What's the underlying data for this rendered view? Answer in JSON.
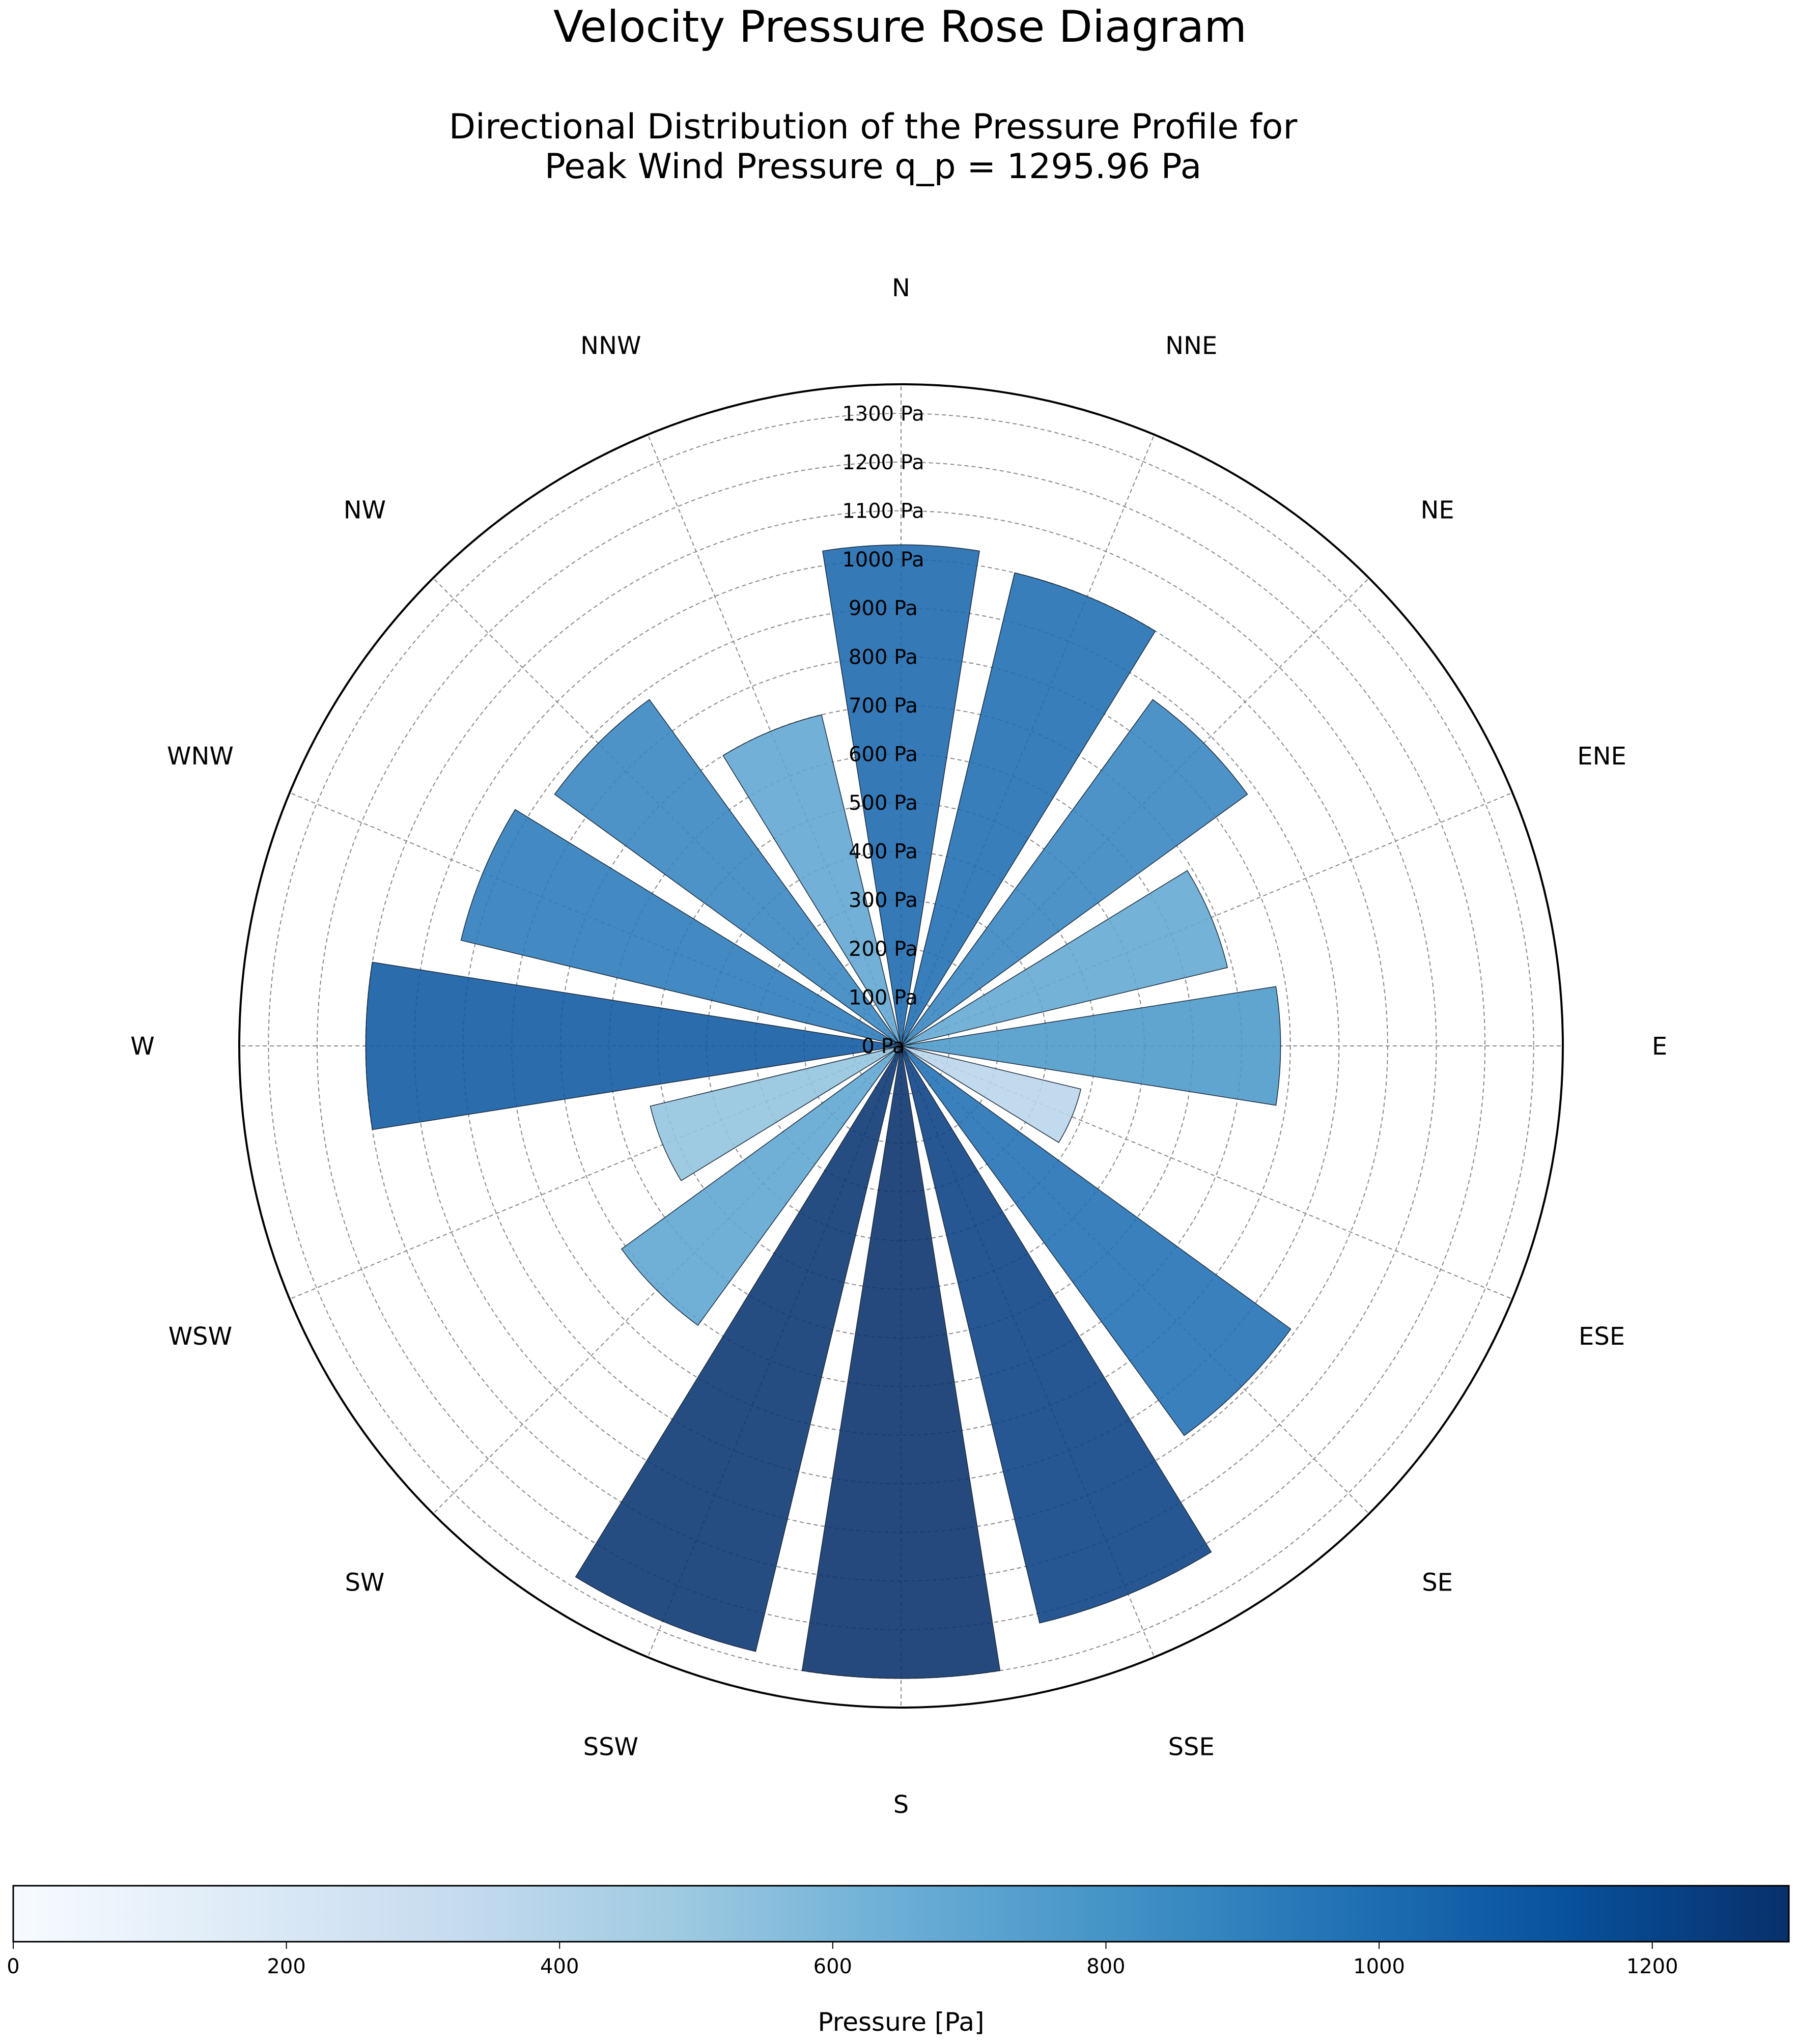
{
  "chart_data": {
    "type": "bar",
    "polar": true,
    "title": "Velocity Pressure Rose Diagram",
    "subtitle_lines": [
      "Directional Distribution of the Pressure Profile for",
      "Peak Wind Pressure q_p = 1295.96 Pa"
    ],
    "categories": [
      "N",
      "NNE",
      "NE",
      "ENE",
      "E",
      "ESE",
      "SE",
      "SSE",
      "S",
      "SSW",
      "SW",
      "WSW",
      "W",
      "WNW",
      "NW",
      "NNW"
    ],
    "values": [
      1030,
      1000,
      880,
      690,
      780,
      380,
      990,
      1220,
      1300,
      1280,
      710,
      530,
      1100,
      930,
      880,
      700
    ],
    "radial_ticks": [
      0,
      100,
      200,
      300,
      400,
      500,
      600,
      700,
      800,
      900,
      1000,
      1100,
      1200,
      1300
    ],
    "radial_tick_labels": [
      "0 Pa",
      "100 Pa",
      "200 Pa",
      "300 Pa",
      "400 Pa",
      "500 Pa",
      "600 Pa",
      "700 Pa",
      "800 Pa",
      "900 Pa",
      "1000 Pa",
      "1100 Pa",
      "1200 Pa",
      "1300 Pa"
    ],
    "rmax": 1360,
    "grid": true,
    "colormap": "Blues",
    "colorbar": {
      "label": "Pressure [Pa]",
      "range": [
        0,
        1300
      ],
      "ticks": [
        0,
        200,
        400,
        600,
        800,
        1000,
        1200
      ],
      "tick_labels": [
        "0",
        "200",
        "400",
        "600",
        "800",
        "1000",
        "1200"
      ],
      "placement": "bottom"
    }
  }
}
